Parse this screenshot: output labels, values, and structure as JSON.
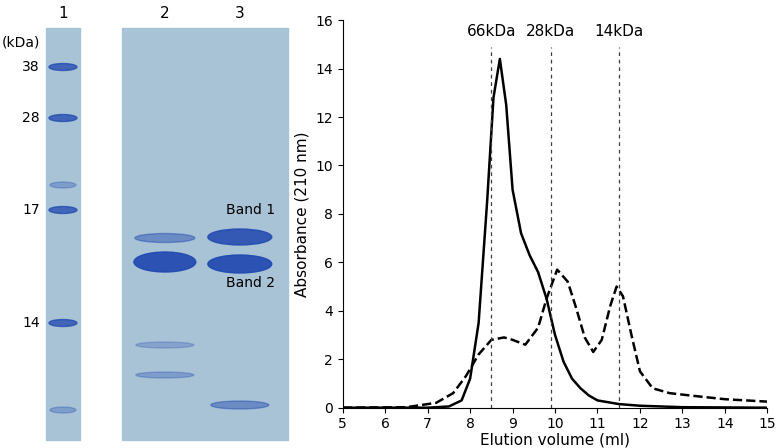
{
  "gel": {
    "lane_labels": [
      "1",
      "2",
      "3"
    ],
    "unit_label": "(kDa)",
    "marker_labels": [
      "38",
      "28",
      "17",
      "14"
    ],
    "band_labels": [
      "Band 1",
      "Band 2"
    ]
  },
  "chart_data": {
    "type": "line",
    "xlabel": "Elution volume (ml)",
    "ylabel": "Absorbance (210 nm)",
    "xlim": [
      5,
      15
    ],
    "xticks": [
      5,
      6,
      7,
      8,
      9,
      10,
      11,
      12,
      13,
      14,
      15
    ],
    "ylim": [
      0,
      16
    ],
    "yticks": [
      0,
      2,
      4,
      6,
      8,
      10,
      12,
      14,
      16
    ],
    "grid": false,
    "reference_lines": [
      {
        "x": 8.5,
        "label": "66kDa"
      },
      {
        "x": 9.9,
        "label": "28kDa"
      },
      {
        "x": 11.5,
        "label": "14kDa"
      }
    ],
    "series": [
      {
        "color": "#000000",
        "line_style": "solid",
        "x": [
          5,
          7,
          7.5,
          7.8,
          8.0,
          8.2,
          8.4,
          8.55,
          8.7,
          8.85,
          9.0,
          9.2,
          9.4,
          9.6,
          9.8,
          10.0,
          10.2,
          10.4,
          10.6,
          10.8,
          11.0,
          11.5,
          12,
          13,
          15
        ],
        "values": [
          0,
          0,
          0.05,
          0.3,
          1.2,
          3.5,
          8.5,
          12.8,
          14.4,
          12.5,
          9.0,
          7.2,
          6.3,
          5.6,
          4.5,
          3.0,
          1.9,
          1.2,
          0.8,
          0.5,
          0.3,
          0.15,
          0.08,
          0.02,
          0
        ]
      },
      {
        "color": "#000000",
        "line_style": "dashed",
        "x": [
          5,
          6.5,
          7.2,
          7.6,
          7.9,
          8.2,
          8.5,
          8.8,
          9.0,
          9.3,
          9.6,
          9.8,
          10.05,
          10.3,
          10.5,
          10.7,
          10.9,
          11.1,
          11.3,
          11.45,
          11.6,
          11.8,
          12.0,
          12.3,
          12.7,
          13.2,
          14.0,
          15.0
        ],
        "values": [
          0,
          0.02,
          0.2,
          0.6,
          1.3,
          2.2,
          2.8,
          2.9,
          2.8,
          2.6,
          3.3,
          4.5,
          5.7,
          5.2,
          4.1,
          2.9,
          2.3,
          2.8,
          4.2,
          5.0,
          4.6,
          3.0,
          1.5,
          0.8,
          0.6,
          0.5,
          0.35,
          0.25
        ]
      }
    ]
  }
}
